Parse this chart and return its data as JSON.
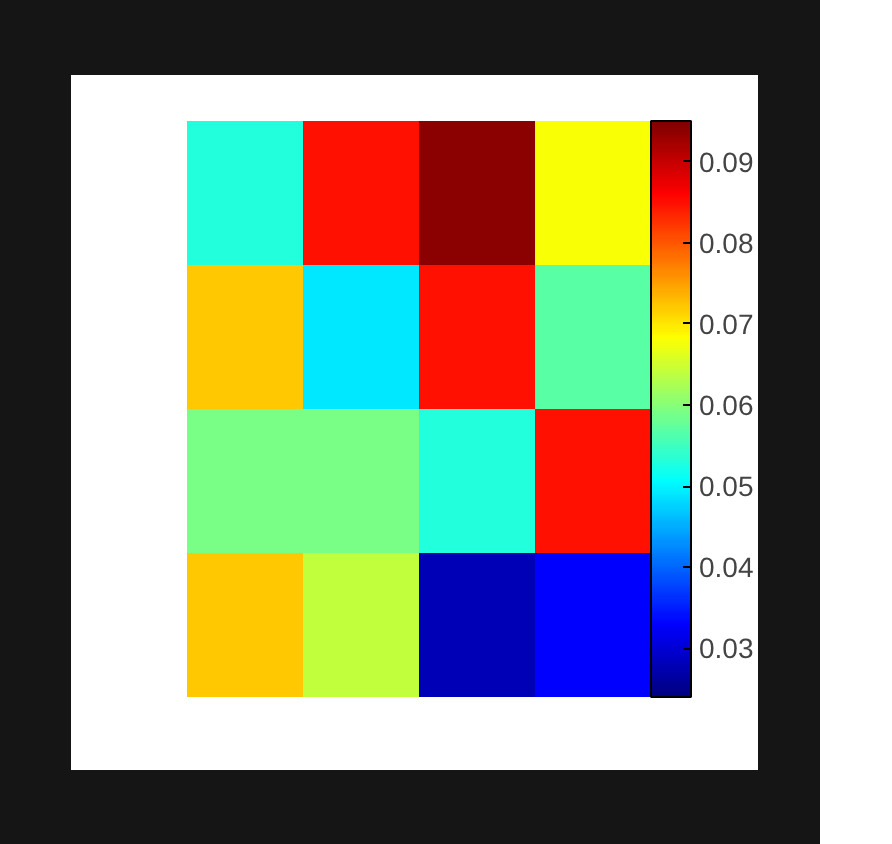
{
  "chart_data": {
    "type": "heatmap",
    "categories": [
      null,
      null,
      null,
      null
    ],
    "y_categories": [
      null,
      null,
      null,
      null
    ],
    "cells": [
      [
        0.053,
        0.085,
        0.094,
        0.068
      ],
      [
        0.072,
        0.049,
        0.085,
        0.057
      ],
      [
        0.059,
        0.059,
        0.053,
        0.085
      ],
      [
        0.072,
        0.064,
        0.028,
        0.033
      ]
    ],
    "clim": [
      0.024,
      0.095
    ],
    "cticks": [
      0.03,
      0.04,
      0.05,
      0.06,
      0.07,
      0.08,
      0.09
    ],
    "tick_labels": false
  }
}
